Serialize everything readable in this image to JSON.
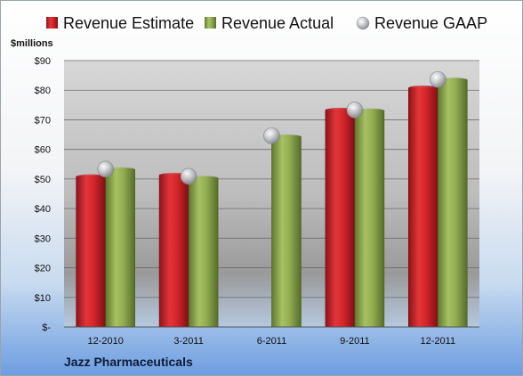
{
  "chart_data": {
    "type": "bar",
    "company": "Jazz Pharmaceuticals",
    "unit_label": "$millions",
    "categories": [
      "12-2010",
      "3-2011",
      "6-2011",
      "9-2011",
      "12-2011"
    ],
    "series": [
      {
        "name": "Revenue Estimate",
        "kind": "bar",
        "color": "#cc1f25",
        "values": [
          50.8,
          51.3,
          null,
          73.3,
          80.8
        ]
      },
      {
        "name": "Revenue Actual",
        "kind": "bar",
        "color": "#8eaa4c",
        "values": [
          53.2,
          50.3,
          64.3,
          73.1,
          83.5
        ]
      },
      {
        "name": "Revenue GAAP",
        "kind": "marker",
        "color": "#b9bcc2",
        "values": [
          53.3,
          50.9,
          64.6,
          73.3,
          83.6
        ]
      }
    ],
    "y_ticks": [
      "$-",
      "$10",
      "$20",
      "$30",
      "$40",
      "$50",
      "$60",
      "$70",
      "$80",
      "$90"
    ],
    "ylim": [
      0,
      90
    ],
    "grid": true,
    "legend_position": "top"
  }
}
